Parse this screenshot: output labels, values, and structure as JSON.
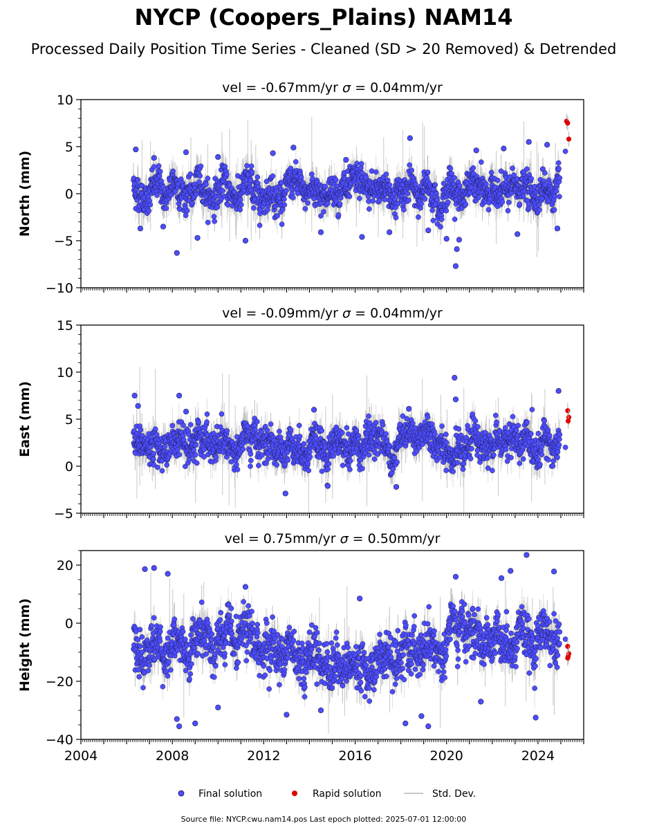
{
  "title": "NYCP (Coopers_Plains) NAM14",
  "subtitle": "Processed Daily Position Time Series - Cleaned (SD > 20 Removed) & Detrended",
  "footer": "Source file: NYCP.cwu.nam14.pos  Last epoch plotted: 2025-07-01 12:00:00",
  "colors": {
    "final": "#4d4dff",
    "final_edge": "#1a1a4d",
    "rapid": "#e00000",
    "stddev": "#b0b0b0"
  },
  "legend": {
    "location": "bottom-center",
    "items": [
      {
        "label": "Final solution",
        "marker": "dot",
        "color": "#4d4dff"
      },
      {
        "label": "Rapid solution",
        "marker": "dot",
        "color": "#e00000"
      },
      {
        "label": "Std. Dev.",
        "marker": "line",
        "color": "#b0b0b0"
      }
    ]
  },
  "chart_data": [
    {
      "type": "scatter",
      "panel": "north",
      "title": "vel = -0.67mm/yr   σ = 0.04mm/yr",
      "title_parts": {
        "lead": "vel = -0.67mm/yr",
        "sigma": "σ",
        "rest": " = 0.04mm/yr"
      },
      "ylabel": "North (mm)",
      "xlim": [
        2004.0,
        2026.0
      ],
      "ylim": [
        -10,
        10
      ],
      "yticks": [
        -10,
        -5,
        0,
        5,
        10
      ],
      "ytick_labels": [
        "−10",
        "−5",
        "0",
        "5",
        "10"
      ],
      "xticks": [
        2004,
        2008,
        2012,
        2016,
        2020,
        2024
      ],
      "xtick_labels": [],
      "grid": false,
      "final_series": {
        "name": "Final solution",
        "x_range": [
          2006.3,
          2024.95
        ],
        "mean": 0.3,
        "spread": 1.4,
        "x": [
          2006.4,
          2006.6,
          2007.2,
          2007.6,
          2008.2,
          2008.6,
          2009.1,
          2010.0,
          2011.2,
          2012.4,
          2013.3,
          2014.5,
          2015.6,
          2016.3,
          2017.5,
          2018.4,
          2019.2,
          2020.0,
          2020.4,
          2020.45,
          2020.55,
          2021.3,
          2022.5,
          2023.1,
          2023.6,
          2024.4,
          2024.85
        ],
        "y": [
          4.7,
          -3.7,
          3.8,
          -3.5,
          -6.3,
          4.4,
          -4.7,
          3.9,
          -5.0,
          4.3,
          4.9,
          -4.1,
          3.6,
          -4.6,
          -4.1,
          5.9,
          -3.9,
          -4.8,
          -7.7,
          -5.9,
          -4.9,
          4.6,
          4.8,
          -4.3,
          5.5,
          5.2,
          -3.7
        ]
      },
      "rapid_series": {
        "name": "Rapid solution",
        "x": [
          2025.25,
          2025.3,
          2025.35
        ],
        "y": [
          7.7,
          7.5,
          5.8
        ]
      },
      "final_tail": {
        "x": [
          2025.2
        ],
        "y": [
          4.5
        ]
      }
    },
    {
      "type": "scatter",
      "panel": "east",
      "title": "vel = -0.09mm/yr   σ = 0.04mm/yr",
      "title_parts": {
        "lead": "vel = -0.09mm/yr",
        "sigma": "σ",
        "rest": " = 0.04mm/yr"
      },
      "ylabel": "East (mm)",
      "xlim": [
        2004.0,
        2026.0
      ],
      "ylim": [
        -5,
        15
      ],
      "yticks": [
        -5,
        0,
        5,
        10,
        15
      ],
      "ytick_labels": [
        "−5",
        "0",
        "5",
        "10",
        "15"
      ],
      "xticks": [
        2004,
        2008,
        2012,
        2016,
        2020,
        2024
      ],
      "xtick_labels": [],
      "grid": false,
      "final_series": {
        "name": "Final solution",
        "x_range": [
          2006.3,
          2024.95
        ],
        "mean": 2.3,
        "spread": 1.5,
        "x": [
          2006.35,
          2006.5,
          2008.3,
          2008.6,
          2012.95,
          2014.2,
          2014.8,
          2017.8,
          2018.35,
          2020.35,
          2020.4,
          2024.9
        ],
        "y": [
          7.5,
          6.4,
          7.5,
          5.8,
          -2.9,
          6.0,
          -2.1,
          -2.2,
          6.1,
          9.4,
          7.1,
          8.0
        ]
      },
      "rapid_series": {
        "name": "Rapid solution",
        "x": [
          2025.3,
          2025.35,
          2025.32
        ],
        "y": [
          5.9,
          5.2,
          4.8
        ]
      },
      "final_tail": {
        "x": [
          2025.2
        ],
        "y": [
          2.0
        ]
      }
    },
    {
      "type": "scatter",
      "panel": "height",
      "title": "vel = 0.75mm/yr   σ = 0.50mm/yr",
      "title_parts": {
        "lead": "vel = 0.75mm/yr",
        "sigma": "σ",
        "rest": " = 0.50mm/yr"
      },
      "ylabel": "Height (mm)",
      "xlim": [
        2004.0,
        2026.0
      ],
      "ylim": [
        -40,
        25
      ],
      "yticks": [
        -40,
        -20,
        0,
        20
      ],
      "ytick_labels": [
        "−40",
        "−20",
        "0",
        "20"
      ],
      "xticks": [
        2004,
        2008,
        2012,
        2016,
        2020,
        2024
      ],
      "xtick_labels": [
        "2004",
        "2008",
        "2012",
        "2016",
        "2020",
        "2024"
      ],
      "grid": false,
      "final_series": {
        "name": "Final solution",
        "x_range": [
          2006.3,
          2024.95
        ],
        "mean": -8.0,
        "spread": 6.5,
        "x": [
          2006.8,
          2007.2,
          2007.8,
          2008.2,
          2008.3,
          2009.0,
          2010.0,
          2011.2,
          2013.0,
          2014.5,
          2016.2,
          2018.2,
          2018.9,
          2019.2,
          2020.4,
          2021.5,
          2022.4,
          2022.8,
          2023.5,
          2023.9,
          2024.7
        ],
        "y": [
          18.6,
          19.0,
          17.0,
          -33.0,
          -35.5,
          -34.5,
          -29.0,
          12.5,
          -31.5,
          -30.0,
          8.5,
          -34.5,
          -32.0,
          -35.5,
          16.0,
          -27.0,
          15.5,
          18.0,
          23.5,
          -32.5,
          17.8
        ]
      },
      "rapid_series": {
        "name": "Rapid solution",
        "x": [
          2025.3,
          2025.35,
          2025.32,
          2025.3
        ],
        "y": [
          -8.0,
          -10.5,
          -11.5,
          -12.0
        ]
      },
      "final_tail": {
        "x": [
          2025.2
        ],
        "y": [
          -5.5
        ]
      }
    }
  ]
}
